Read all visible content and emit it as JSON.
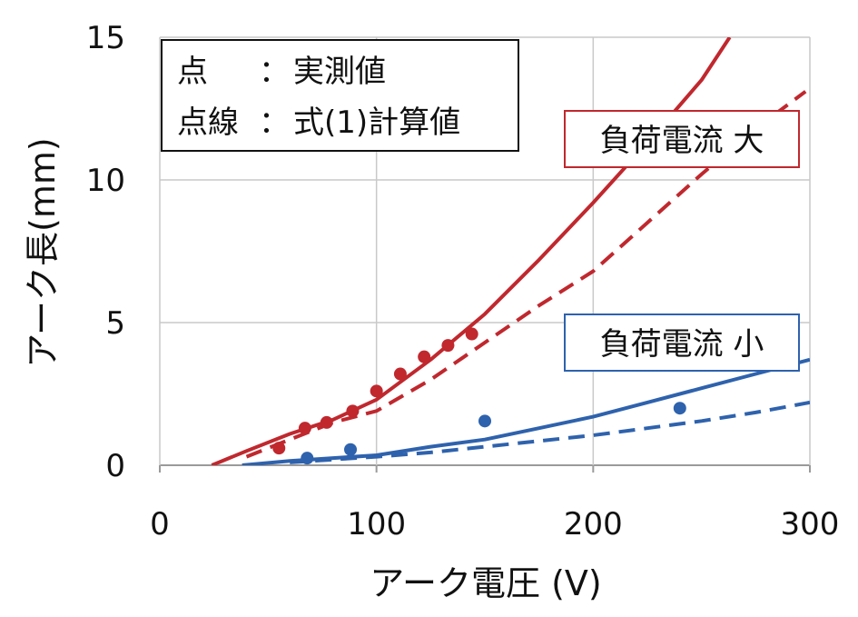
{
  "chart_data": {
    "type": "line",
    "xlabel": "アーク電圧 (V)",
    "ylabel": "アーク長(mm)",
    "xlim": [
      0,
      300
    ],
    "ylim": [
      0,
      15
    ],
    "x_ticks": [
      "0",
      "100",
      "200",
      "300"
    ],
    "y_ticks": [
      "0",
      "5",
      "10",
      "15"
    ],
    "grid": true,
    "legend_box": {
      "line1_key": "点",
      "line1_sep": "：",
      "line1_value": "実測値",
      "line2_key": "点線",
      "line2_sep": "：",
      "line2_value": "式(1)計算値"
    },
    "groups": [
      {
        "label": "負荷電流 大",
        "color": "#c0282e",
        "measured": [
          [
            55,
            0.6
          ],
          [
            67,
            1.3
          ],
          [
            77,
            1.5
          ],
          [
            89,
            1.9
          ],
          [
            100,
            2.6
          ],
          [
            111,
            3.2
          ],
          [
            122,
            3.8
          ],
          [
            133,
            4.2
          ],
          [
            144,
            4.6
          ]
        ],
        "solid_curve": [
          [
            24,
            0.0
          ],
          [
            40,
            0.5
          ],
          [
            60,
            1.1
          ],
          [
            80,
            1.6
          ],
          [
            100,
            2.3
          ],
          [
            125,
            3.7
          ],
          [
            150,
            5.3
          ],
          [
            175,
            7.2
          ],
          [
            200,
            9.2
          ],
          [
            225,
            11.3
          ],
          [
            250,
            13.5
          ],
          [
            263,
            15.0
          ]
        ],
        "dashed_curve": [
          [
            40,
            0.3
          ],
          [
            60,
            0.9
          ],
          [
            80,
            1.5
          ],
          [
            100,
            1.9
          ],
          [
            125,
            3.0
          ],
          [
            150,
            4.3
          ],
          [
            175,
            5.6
          ],
          [
            200,
            6.8
          ],
          [
            225,
            8.5
          ],
          [
            250,
            10.2
          ],
          [
            275,
            11.8
          ],
          [
            298,
            13.1
          ]
        ]
      },
      {
        "label": "負荷電流 小",
        "color": "#2e62ad",
        "measured": [
          [
            68,
            0.25
          ],
          [
            88,
            0.55
          ],
          [
            150,
            1.55
          ],
          [
            240,
            2.0
          ]
        ],
        "solid_curve": [
          [
            38,
            0.0
          ],
          [
            60,
            0.15
          ],
          [
            80,
            0.25
          ],
          [
            100,
            0.35
          ],
          [
            125,
            0.65
          ],
          [
            150,
            0.9
          ],
          [
            175,
            1.3
          ],
          [
            200,
            1.7
          ],
          [
            225,
            2.2
          ],
          [
            250,
            2.7
          ],
          [
            275,
            3.2
          ],
          [
            300,
            3.7
          ]
        ],
        "dashed_curve": [
          [
            60,
            0.1
          ],
          [
            80,
            0.2
          ],
          [
            100,
            0.3
          ],
          [
            125,
            0.45
          ],
          [
            150,
            0.65
          ],
          [
            175,
            0.85
          ],
          [
            200,
            1.05
          ],
          [
            225,
            1.3
          ],
          [
            250,
            1.55
          ],
          [
            275,
            1.85
          ],
          [
            300,
            2.2
          ]
        ]
      }
    ]
  }
}
